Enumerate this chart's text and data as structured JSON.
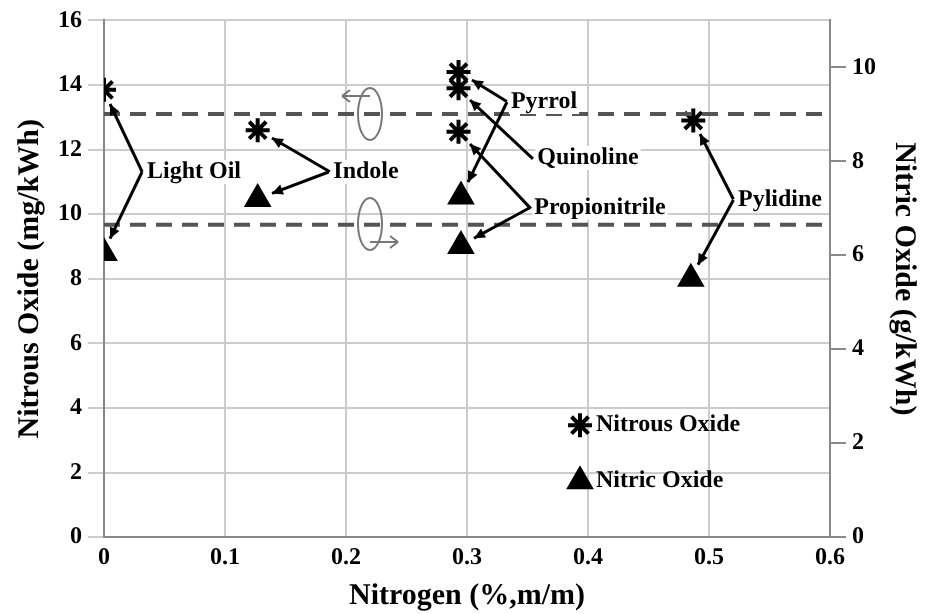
{
  "chart_data": {
    "type": "scatter",
    "xlabel": "Nitrogen (%,m/m)",
    "ylabel": "Nitrous Oxide (mg/kWh)",
    "y2label": "Nitric Oxide (g/kWh)",
    "xlim": [
      0,
      0.6
    ],
    "xticks": [
      0,
      0.1,
      0.2,
      0.3,
      0.4,
      0.5,
      0.6
    ],
    "ylim": [
      0,
      16
    ],
    "yticks": [
      0,
      2,
      4,
      6,
      8,
      10,
      12,
      14,
      16
    ],
    "y2lim": [
      0,
      11
    ],
    "y2ticks": [
      0,
      2,
      4,
      6,
      8,
      10
    ],
    "grid": true,
    "legend": "bottom right",
    "series": [
      {
        "name": "Nitrous Oxide",
        "color": "#000000",
        "marker": "cross",
        "x": [
          0,
          0.127,
          0.293,
          0.293,
          0.293,
          0.487
        ],
        "values": [
          13.85,
          12.6,
          14.4,
          13.9,
          12.55,
          12.9
        ]
      },
      {
        "name": "Nitric Oxide",
        "color": "#000000",
        "marker": "triangle",
        "axis": "y2",
        "x": [
          0,
          0.127,
          0.295,
          null,
          0.295,
          0.485
        ],
        "values": [
          6.05,
          7.2,
          7.25,
          null,
          6.2,
          5.5
        ]
      }
    ],
    "ref_lines": [
      {
        "axis": "y",
        "value": 13.1,
        "color": "#555555",
        "line_style": "dashed"
      },
      {
        "axis": "y2",
        "value": 6.65,
        "color": "#555555",
        "line_style": "dashed"
      }
    ],
    "annotations": [
      {
        "text": "Light Oil",
        "x": 0,
        "y": 13.85
      },
      {
        "text": "Indole",
        "x": 0.127,
        "y": 12.6
      },
      {
        "text": "Pyrrol",
        "x": 0.293,
        "y": 14.4
      },
      {
        "text": "Quinoline",
        "x": 0.293,
        "y": 13.9
      },
      {
        "text": "Propionitrile",
        "x": 0.293,
        "y": 12.55
      },
      {
        "text": "Pylidine",
        "x": 0.487,
        "y": 12.9
      }
    ]
  }
}
